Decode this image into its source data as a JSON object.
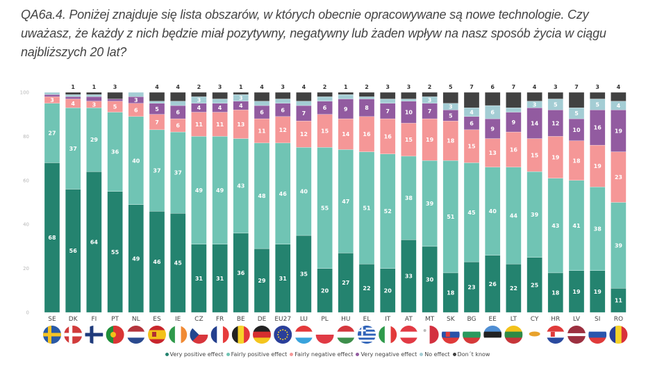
{
  "title": "QA6a.4. Poniżej znajduje się lista obszarów, w których obecnie opracowywane są nowe technologie. Czy uważasz, że każdy z nich będzie miał pozytywny, negatywny lub żaden wpływ na nasz sposób życia w ciągu najbliższych 20 lat?",
  "chart_data": {
    "type": "bar",
    "stacked": true,
    "title": "QA6a.4. Poniżej znajduje się lista obszarów, w których obecnie opracowywane są nowe technologie. Czy uważasz, że każdy z nich będzie miał pozytywny, negatywny lub żaden wpływ na nasz sposób życia w ciągu najbliższych 20 lat?",
    "xlabel": "",
    "ylabel": "",
    "ylim": [
      0,
      100
    ],
    "yticks": [
      0,
      20,
      40,
      60,
      80,
      100
    ],
    "grid": false,
    "legend_position": "bottom-center",
    "categories": [
      "SE",
      "DK",
      "FI",
      "PT",
      "NL",
      "ES",
      "IE",
      "CZ",
      "FR",
      "BE",
      "DE",
      "EU27",
      "LU",
      "PL",
      "HU",
      "EL",
      "IT",
      "AT",
      "MT",
      "SK",
      "BG",
      "EE",
      "LT",
      "CY",
      "HR",
      "LV",
      "SI",
      "RO"
    ],
    "series": [
      {
        "name": "Very positive effect",
        "color": "#24836f",
        "values": [
          68,
          56,
          64,
          55,
          49,
          46,
          45,
          31,
          31,
          36,
          29,
          31,
          35,
          20,
          27,
          22,
          20,
          33,
          30,
          18,
          23,
          26,
          22,
          25,
          18,
          19,
          19,
          11
        ]
      },
      {
        "name": "Fairly positive effect",
        "color": "#70c4b4",
        "values": [
          27,
          37,
          29,
          36,
          40,
          37,
          37,
          49,
          49,
          43,
          48,
          46,
          40,
          55,
          47,
          51,
          52,
          38,
          39,
          51,
          45,
          40,
          44,
          39,
          43,
          41,
          38,
          39
        ]
      },
      {
        "name": "Fairly negative effect",
        "color": "#f59797",
        "values": [
          3,
          4,
          3,
          5,
          6,
          7,
          6,
          11,
          11,
          13,
          11,
          12,
          12,
          15,
          14,
          16,
          16,
          15,
          19,
          18,
          15,
          13,
          16,
          15,
          19,
          18,
          19,
          23
        ]
      },
      {
        "name": "Very negative effect",
        "color": "#925ba0",
        "values": [
          1,
          1,
          2,
          1,
          3,
          5,
          6,
          4,
          4,
          4,
          6,
          6,
          7,
          6,
          9,
          8,
          7,
          10,
          7,
          5,
          6,
          9,
          9,
          14,
          12,
          10,
          16,
          19
        ]
      },
      {
        "name": "No effect",
        "color": "#a4cdd4",
        "values": [
          1,
          1,
          1,
          0,
          2,
          1,
          2,
          3,
          2,
          3,
          2,
          2,
          2,
          2,
          2,
          1,
          2,
          1,
          3,
          3,
          4,
          6,
          2,
          3,
          5,
          5,
          5,
          4
        ]
      },
      {
        "name": "Don't know",
        "color": "#414141",
        "values": [
          0,
          1,
          1,
          3,
          0,
          4,
          4,
          2,
          3,
          1,
          4,
          3,
          4,
          2,
          1,
          2,
          3,
          3,
          2,
          5,
          7,
          6,
          7,
          4,
          3,
          7,
          3,
          4
        ]
      }
    ],
    "shown_labels": {
      "Very positive effect": [
        68,
        56,
        64,
        55,
        49,
        46,
        45,
        31,
        31,
        36,
        29,
        31,
        35,
        20,
        27,
        22,
        20,
        33,
        30,
        18,
        23,
        26,
        22,
        25,
        18,
        19,
        19,
        11
      ],
      "Fairly positive effect": [
        27,
        37,
        29,
        36,
        40,
        37,
        37,
        49,
        49,
        43,
        48,
        46,
        40,
        55,
        47,
        51,
        52,
        38,
        39,
        51,
        45,
        40,
        44,
        39,
        43,
        41,
        38,
        39
      ],
      "Fairly negative effect": [
        3,
        4,
        3,
        5,
        6,
        7,
        6,
        11,
        11,
        13,
        11,
        12,
        12,
        15,
        14,
        16,
        16,
        15,
        19,
        18,
        15,
        13,
        16,
        15,
        19,
        18,
        19,
        23
      ],
      "Very negative effect": [
        null,
        null,
        null,
        null,
        3,
        5,
        6,
        4,
        4,
        4,
        6,
        6,
        7,
        6,
        9,
        8,
        7,
        10,
        7,
        5,
        6,
        9,
        9,
        14,
        12,
        10,
        16,
        19
      ],
      "No effect": [
        null,
        null,
        null,
        null,
        null,
        null,
        null,
        3,
        null,
        3,
        null,
        null,
        null,
        null,
        null,
        null,
        null,
        null,
        3,
        3,
        4,
        6,
        null,
        3,
        5,
        5,
        5,
        4
      ],
      "Don't know": [
        null,
        1,
        1,
        3,
        null,
        4,
        4,
        2,
        3,
        1,
        4,
        3,
        4,
        2,
        1,
        2,
        3,
        3,
        2,
        5,
        7,
        6,
        7,
        4,
        3,
        7,
        3,
        4
      ]
    }
  },
  "flags": [
    "SE",
    "DK",
    "FI",
    "PT",
    "NL",
    "ES",
    "IE",
    "CZ",
    "FR",
    "BE",
    "DE",
    "EU27",
    "LU",
    "PL",
    "HU",
    "EL",
    "IT",
    "AT",
    "MT",
    "SK",
    "BG",
    "EE",
    "LT",
    "CY",
    "HR",
    "LV",
    "SI",
    "RO"
  ],
  "legend": [
    {
      "label": "Very positive effect",
      "color": "#24836f"
    },
    {
      "label": "Fairly positive effect",
      "color": "#70c4b4"
    },
    {
      "label": "Fairly negative effect",
      "color": "#f59797"
    },
    {
      "label": "Very negative effect",
      "color": "#925ba0"
    },
    {
      "label": "No effect",
      "color": "#a4cdd4"
    },
    {
      "label": "Don´t know",
      "color": "#414141"
    }
  ]
}
